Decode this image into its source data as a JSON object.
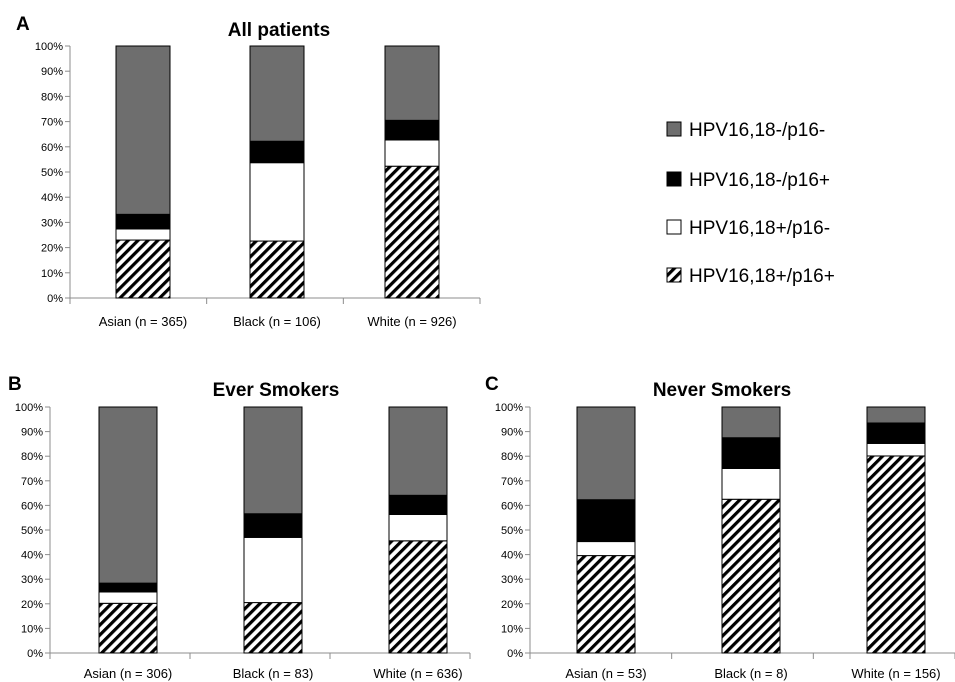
{
  "colors": {
    "HPV16,18-/p16-": "#6e6e6e",
    "HPV16,18-/p16+": "#000000",
    "HPV16,18+/p16-": "#ffffff",
    "HPV16,18+/p16+": "hatch"
  },
  "legend": {
    "items": [
      "HPV16,18-/p16-",
      "HPV16,18-/p16+",
      "HPV16,18+/p16-",
      "HPV16,18+/p16+"
    ]
  },
  "y_ticks": [
    "0%",
    "10%",
    "20%",
    "30%",
    "40%",
    "50%",
    "60%",
    "70%",
    "80%",
    "90%",
    "100%"
  ],
  "chart_data": [
    {
      "type": "bar",
      "stacked": true,
      "panel_label": "A",
      "title": "All patients",
      "categories": [
        "Asian (n = 365)",
        "Black (n = 106)",
        "White (n = 926)"
      ],
      "ylim": [
        0,
        100
      ],
      "grid": false,
      "series": [
        {
          "name": "HPV16,18+/p16+",
          "values": [
            23,
            22.6,
            52.3
          ]
        },
        {
          "name": "HPV16,18+/p16-",
          "values": [
            4.4,
            31.1,
            10.4
          ]
        },
        {
          "name": "HPV16,18-/p16+",
          "values": [
            5.8,
            8.5,
            7.8
          ]
        },
        {
          "name": "HPV16,18-/p16-",
          "values": [
            66.8,
            37.8,
            29.5
          ]
        }
      ]
    },
    {
      "type": "bar",
      "stacked": true,
      "panel_label": "B",
      "title": "Ever Smokers",
      "categories": [
        "Asian (n = 306)",
        "Black (n = 83)",
        "White (n = 636)"
      ],
      "ylim": [
        0,
        100
      ],
      "grid": false,
      "series": [
        {
          "name": "HPV16,18+/p16+",
          "values": [
            20.2,
            20.5,
            45.6
          ]
        },
        {
          "name": "HPV16,18+/p16-",
          "values": [
            4.6,
            26.5,
            10.7
          ]
        },
        {
          "name": "HPV16,18-/p16+",
          "values": [
            3.6,
            9.6,
            7.8
          ]
        },
        {
          "name": "HPV16,18-/p16-",
          "values": [
            71.6,
            43.4,
            35.9
          ]
        }
      ]
    },
    {
      "type": "bar",
      "stacked": true,
      "panel_label": "C",
      "title": "Never Smokers",
      "categories": [
        "Asian (n = 53)",
        "Black (n = 8)",
        "White (n = 156)"
      ],
      "ylim": [
        0,
        100
      ],
      "grid": false,
      "series": [
        {
          "name": "HPV16,18+/p16+",
          "values": [
            39.6,
            62.5,
            80.1
          ]
        },
        {
          "name": "HPV16,18+/p16-",
          "values": [
            5.7,
            12.5,
            5.1
          ]
        },
        {
          "name": "HPV16,18-/p16+",
          "values": [
            17,
            12.5,
            8.3
          ]
        },
        {
          "name": "HPV16,18-/p16-",
          "values": [
            37.7,
            12.5,
            6.5
          ]
        }
      ]
    }
  ]
}
